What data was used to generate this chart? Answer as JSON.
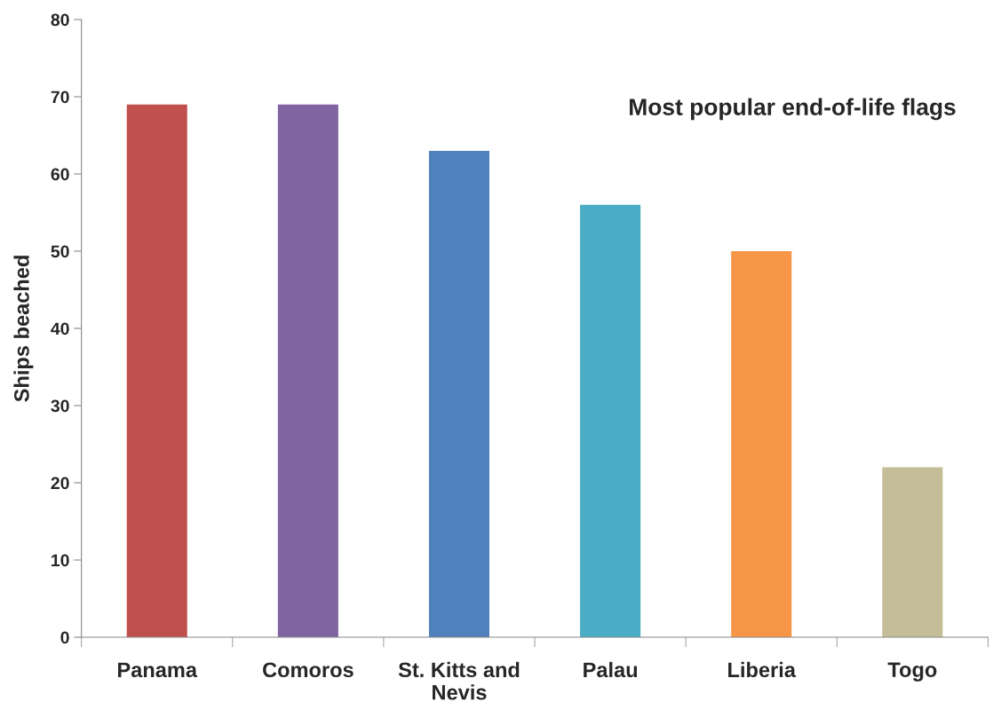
{
  "chart_data": {
    "type": "bar",
    "title": "Most popular end-of-life flags",
    "ylabel": "Ships beached",
    "categories": [
      "Panama",
      "Comoros",
      "St. Kitts and Nevis",
      "Palau",
      "Liberia",
      "Togo"
    ],
    "values": [
      69,
      69,
      63,
      56,
      50,
      22
    ],
    "colors": [
      "#c0504d",
      "#8064a2",
      "#4f81bd",
      "#4bacc6",
      "#f79646",
      "#c4bd97"
    ],
    "ylim": [
      0,
      80
    ],
    "yticks": [
      0,
      10,
      20,
      30,
      40,
      50,
      60,
      70,
      80
    ],
    "grid": false,
    "legend": false
  }
}
